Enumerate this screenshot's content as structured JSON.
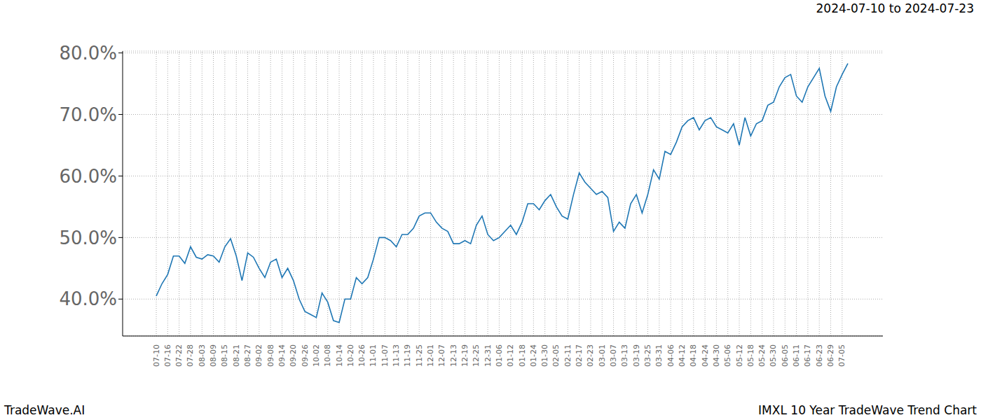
{
  "chart_data": {
    "type": "line",
    "title": "2024-07-10 to 2024-07-23",
    "annotations": [
      "TradeWave.AI",
      "IMXL 10 Year TradeWave Trend Chart"
    ],
    "highlight": [
      "07-10",
      "07-22"
    ],
    "categories": [
      "07-10",
      null,
      "07-16",
      null,
      "07-22",
      null,
      "07-28",
      null,
      "08-03",
      null,
      "08-09",
      null,
      "08-15",
      null,
      "08-21",
      null,
      "08-27",
      null,
      "09-02",
      null,
      "09-08",
      null,
      "09-14",
      null,
      "09-20",
      null,
      "09-26",
      null,
      "10-02",
      null,
      "10-08",
      null,
      "10-14",
      null,
      "10-20",
      null,
      "10-26",
      null,
      "11-01",
      null,
      "11-07",
      null,
      "11-13",
      null,
      "11-19",
      null,
      "11-25",
      null,
      "12-01",
      null,
      "12-07",
      null,
      "12-13",
      null,
      "12-19",
      null,
      "12-25",
      null,
      "12-31",
      null,
      "01-06",
      null,
      "01-12",
      null,
      "01-18",
      null,
      "01-24",
      null,
      "01-30",
      null,
      "02-05",
      null,
      "02-11",
      null,
      "02-17",
      null,
      "02-23",
      null,
      "03-01",
      null,
      "03-07",
      null,
      "03-13",
      null,
      "03-19",
      null,
      "03-25",
      null,
      "03-31",
      null,
      "04-06",
      null,
      "04-12",
      null,
      "04-18",
      null,
      "04-24",
      null,
      "04-30",
      null,
      "05-06",
      null,
      "05-12",
      null,
      "05-18",
      null,
      "05-24",
      null,
      "05-30",
      null,
      "06-05",
      null,
      "06-11",
      null,
      "06-17",
      null,
      "06-23",
      null,
      "06-29",
      null,
      "07-05",
      null
    ],
    "values": [
      40.5,
      42.5,
      44,
      47,
      47,
      45.8,
      48.5,
      46.8,
      46.5,
      47.2,
      47,
      46,
      48.5,
      49.8,
      47,
      43,
      47.5,
      46.8,
      45,
      43.5,
      46,
      46.5,
      43.5,
      45,
      43,
      40,
      38,
      37.5,
      37,
      41,
      39.5,
      36.5,
      36.2,
      40,
      40,
      43.5,
      42.5,
      43.5,
      46.5,
      50,
      50,
      49.5,
      48.5,
      50.5,
      50.5,
      51.5,
      53.5,
      54,
      54,
      52.5,
      51.5,
      51,
      49,
      49,
      49.5,
      49,
      52,
      53.5,
      50.5,
      49.5,
      50,
      51,
      52,
      50.5,
      52.5,
      55.5,
      55.5,
      54.5,
      56,
      57,
      55,
      53.5,
      53,
      57,
      60.5,
      59,
      58,
      57,
      57.5,
      56.5,
      51,
      52.5,
      51.5,
      55.5,
      57,
      54,
      57,
      61,
      59.5,
      64,
      63.5,
      65.5,
      68,
      69,
      69.5,
      67.5,
      69,
      69.5,
      68,
      67.5,
      67,
      68.5,
      65,
      69.5,
      66.5,
      68.5,
      69,
      71.5,
      72,
      74.5,
      76,
      76.5,
      73,
      72,
      74.5,
      76,
      77.5,
      73,
      70.5,
      74.5,
      76.5,
      78.3
    ],
    "color": "#1f77b4",
    "ylim": [
      34,
      80.3
    ],
    "yticks": [
      {
        "value": 40,
        "label": "40.0%"
      },
      {
        "value": 50,
        "label": "50.0%"
      },
      {
        "value": 60,
        "label": "60.0%"
      },
      {
        "value": 70,
        "label": "70.0%"
      },
      {
        "value": 80,
        "label": "80.0%"
      }
    ],
    "grid": true
  }
}
